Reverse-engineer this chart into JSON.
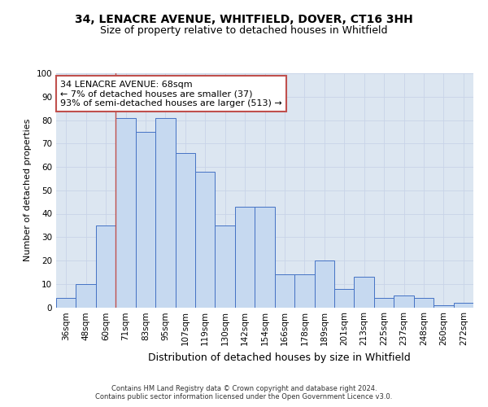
{
  "title1": "34, LENACRE AVENUE, WHITFIELD, DOVER, CT16 3HH",
  "title2": "Size of property relative to detached houses in Whitfield",
  "xlabel": "Distribution of detached houses by size in Whitfield",
  "ylabel": "Number of detached properties",
  "categories": [
    "36sqm",
    "48sqm",
    "60sqm",
    "71sqm",
    "83sqm",
    "95sqm",
    "107sqm",
    "119sqm",
    "130sqm",
    "142sqm",
    "154sqm",
    "166sqm",
    "178sqm",
    "189sqm",
    "201sqm",
    "213sqm",
    "225sqm",
    "237sqm",
    "248sqm",
    "260sqm",
    "272sqm"
  ],
  "values": [
    4,
    10,
    35,
    81,
    75,
    81,
    66,
    58,
    35,
    43,
    43,
    14,
    14,
    20,
    8,
    13,
    4,
    5,
    4,
    1,
    2
  ],
  "bar_color": "#c6d9f0",
  "bar_edge_color": "#4472c4",
  "vline_x": 3.0,
  "vline_color": "#c0504d",
  "annotation_line1": "34 LENACRE AVENUE: 68sqm",
  "annotation_line2": "← 7% of detached houses are smaller (37)",
  "annotation_line3": "93% of semi-detached houses are larger (513) →",
  "annotation_box_facecolor": "#ffffff",
  "annotation_box_edgecolor": "#c0504d",
  "ylim": [
    0,
    100
  ],
  "yticks": [
    0,
    10,
    20,
    30,
    40,
    50,
    60,
    70,
    80,
    90,
    100
  ],
  "grid_color": "#c8d4e8",
  "bg_color": "#dce6f1",
  "footnote1": "Contains HM Land Registry data © Crown copyright and database right 2024.",
  "footnote2": "Contains public sector information licensed under the Open Government Licence v3.0.",
  "title1_fontsize": 10,
  "title2_fontsize": 9,
  "ylabel_fontsize": 8,
  "xlabel_fontsize": 9,
  "tick_fontsize": 7.5,
  "annot_fontsize": 8,
  "footnote_fontsize": 6
}
